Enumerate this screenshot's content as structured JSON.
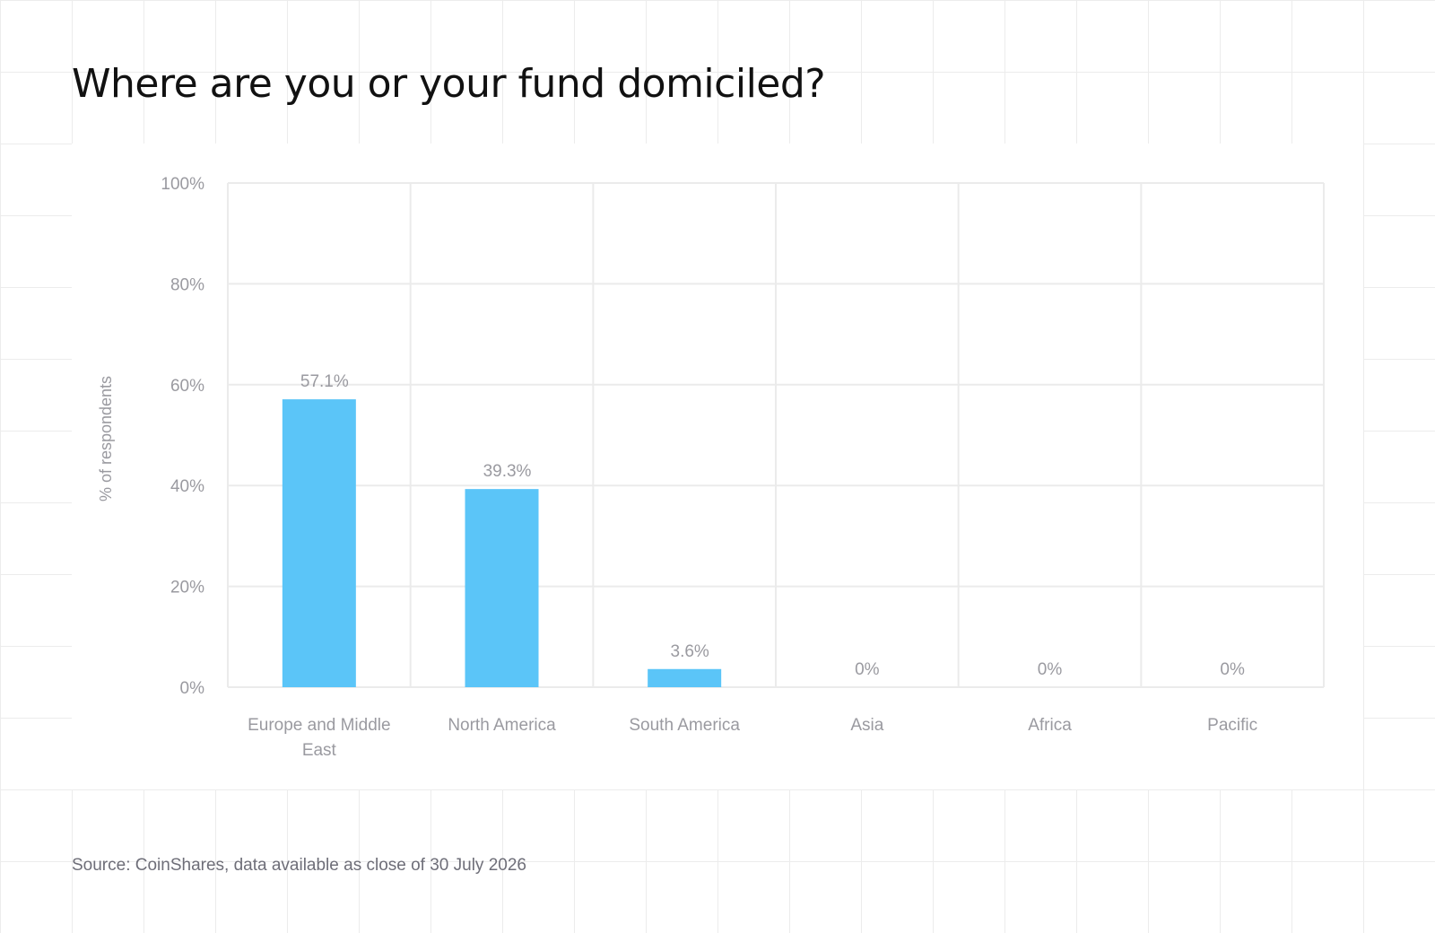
{
  "title": "Where are you or your fund domiciled?",
  "source": "Source: CoinShares, data available as close of 30 July 2026",
  "colors": {
    "bar": "#5bc5f8",
    "grid": "#ebebeb",
    "axis_text": "#9a9aa0",
    "label_text": "#9a9aa0"
  },
  "chart_data": {
    "type": "bar",
    "categories": [
      "Europe and Middle East",
      "North America",
      "South America",
      "Asia",
      "Africa",
      "Pacific"
    ],
    "category_label_lines": [
      [
        "Europe and Middle",
        "East"
      ],
      [
        "North America"
      ],
      [
        "South America"
      ],
      [
        "Asia"
      ],
      [
        "Africa"
      ],
      [
        "Pacific"
      ]
    ],
    "values": [
      57.1,
      39.3,
      3.6,
      0,
      0,
      0
    ],
    "data_labels": [
      "57.1%",
      "39.3%",
      "3.6%",
      "0%",
      "0%",
      "0%"
    ],
    "y_ticks": [
      0,
      20,
      40,
      60,
      80,
      100
    ],
    "y_tick_labels": [
      "0%",
      "20%",
      "40%",
      "60%",
      "80%",
      "100%"
    ],
    "ylabel": "% of respondents",
    "xlabel": "",
    "ylim": [
      0,
      100
    ],
    "grid": true,
    "legend": "none"
  }
}
